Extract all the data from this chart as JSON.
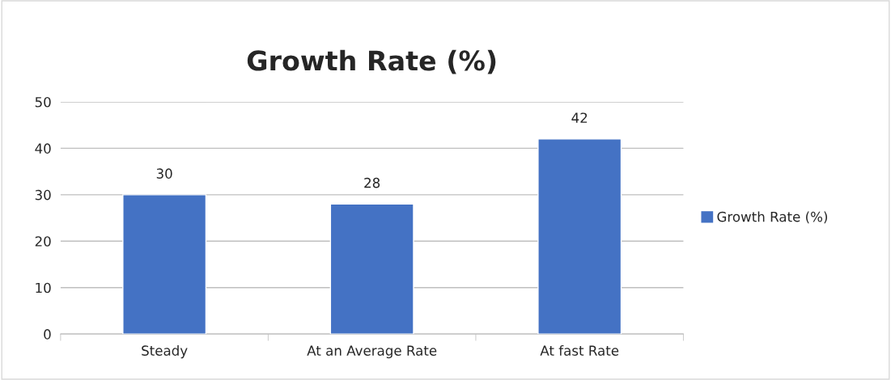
{
  "chart_data": {
    "type": "bar",
    "title": "Growth Rate (%)",
    "categories": [
      "Steady",
      "At an Average Rate",
      "At fast Rate"
    ],
    "series": [
      {
        "name": "Growth Rate (%)",
        "color": "#4472c4",
        "values": [
          30,
          28,
          42
        ]
      }
    ],
    "ylim": [
      0,
      50
    ],
    "yticks": [
      0,
      10,
      20,
      30,
      40,
      50
    ],
    "grid": "y",
    "legend": "right",
    "data_labels": true
  }
}
